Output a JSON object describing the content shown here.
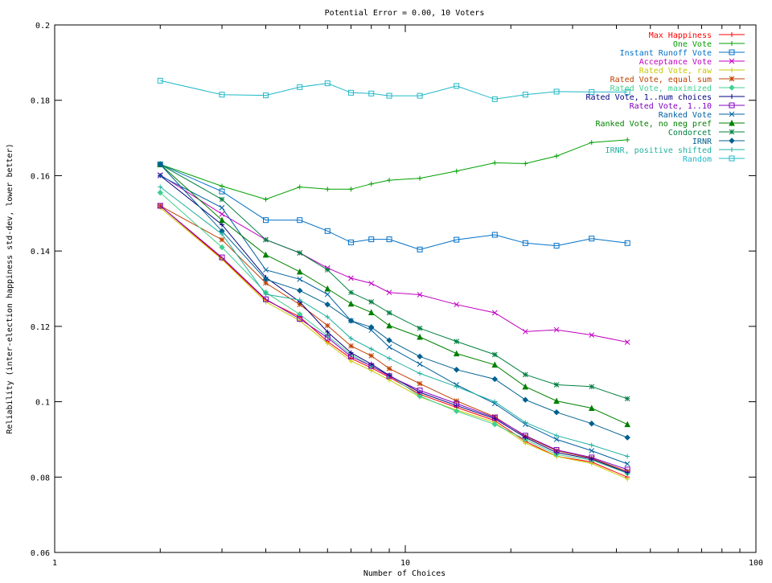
{
  "chart_data": {
    "type": "line",
    "title": "Potential Error = 0.00, 10 Voters",
    "xlabel": "Number of Choices",
    "ylabel": "Reliability (inter-election happiness std-dev, lower better)",
    "x_scale": "log",
    "xlim": [
      1,
      100
    ],
    "ylim": [
      0.06,
      0.2
    ],
    "x_ticks": [
      "1",
      "10",
      "100"
    ],
    "y_ticks": [
      "0.06",
      "0.08",
      "0.1",
      "0.12",
      "0.14",
      "0.16",
      "0.18",
      "0.2"
    ],
    "grid": false,
    "legend_position": "top-right",
    "x": [
      2,
      3,
      4,
      5,
      6,
      7,
      8,
      9,
      11,
      14,
      18,
      22,
      27,
      34,
      43
    ],
    "series": [
      {
        "name": "Max Happiness",
        "color": "#ff0000",
        "marker": "plus",
        "values": [
          0.152,
          0.138,
          0.127,
          0.1225,
          0.116,
          0.1115,
          0.109,
          0.1065,
          0.102,
          0.0985,
          0.095,
          0.0895,
          0.0855,
          0.084,
          0.08
        ]
      },
      {
        "name": "One Vote",
        "color": "#00a000",
        "marker": "plus",
        "values": [
          0.163,
          0.1572,
          0.1537,
          0.157,
          0.1564,
          0.1564,
          0.1578,
          0.1588,
          0.1593,
          0.1612,
          0.1634,
          0.1632,
          0.1652,
          0.1688,
          0.1695
        ]
      },
      {
        "name": "Instant Runoff Vote",
        "color": "#0070c8",
        "marker": "square",
        "values": [
          0.163,
          0.1558,
          0.1482,
          0.1482,
          0.1453,
          0.1423,
          0.1431,
          0.1431,
          0.1404,
          0.143,
          0.1443,
          0.1421,
          0.1414,
          0.1433,
          0.1421
        ]
      },
      {
        "name": "Acceptance Vote",
        "color": "#c000c0",
        "marker": "x",
        "values": [
          0.1602,
          0.1498,
          0.143,
          0.1395,
          0.1355,
          0.1328,
          0.1314,
          0.129,
          0.1284,
          0.1258,
          0.1236,
          0.1186,
          0.1191,
          0.1177,
          0.1158
        ]
      },
      {
        "name": "Rated Vote, raw",
        "color": "#c8c800",
        "marker": "plus",
        "values": [
          0.1515,
          0.1378,
          0.1265,
          0.1215,
          0.1155,
          0.1108,
          0.1083,
          0.1058,
          0.1013,
          0.0978,
          0.0945,
          0.089,
          0.0855,
          0.0836,
          0.0795
        ]
      },
      {
        "name": "Rated Vote, equal sum",
        "color": "#c04000",
        "marker": "star",
        "values": [
          0.152,
          0.143,
          0.1315,
          0.1258,
          0.1202,
          0.1148,
          0.1122,
          0.1088,
          0.1048,
          0.1002,
          0.096,
          0.0908,
          0.087,
          0.085,
          0.0815
        ]
      },
      {
        "name": "Rated Vote, maximized",
        "color": "#40d090",
        "marker": "diamond",
        "values": [
          0.1555,
          0.141,
          0.129,
          0.1232,
          0.1175,
          0.1125,
          0.1095,
          0.107,
          0.1015,
          0.0975,
          0.094,
          0.09,
          0.086,
          0.0845,
          0.081
        ]
      },
      {
        "name": "Rated Vote, 1..num choices",
        "color": "#000080",
        "marker": "plus",
        "values": [
          0.16,
          0.147,
          0.133,
          0.1265,
          0.1185,
          0.113,
          0.11,
          0.107,
          0.1025,
          0.099,
          0.0955,
          0.0905,
          0.0865,
          0.0848,
          0.0812
        ]
      },
      {
        "name": "Rated Vote, 1..10",
        "color": "#8000c0",
        "marker": "square",
        "values": [
          0.152,
          0.1383,
          0.1272,
          0.122,
          0.117,
          0.112,
          0.1095,
          0.1068,
          0.103,
          0.0995,
          0.0958,
          0.091,
          0.0872,
          0.0852,
          0.082
        ]
      },
      {
        "name": "Ranked Vote",
        "color": "#0060a0",
        "marker": "x",
        "values": [
          0.16,
          0.1515,
          0.135,
          0.1325,
          0.1285,
          0.1215,
          0.119,
          0.1145,
          0.11,
          0.1045,
          0.0995,
          0.094,
          0.09,
          0.087,
          0.0835
        ]
      },
      {
        "name": "Ranked Vote, no neg pref",
        "color": "#008000",
        "marker": "triangle",
        "values": [
          0.163,
          0.1482,
          0.139,
          0.1345,
          0.13,
          0.126,
          0.1237,
          0.1202,
          0.1172,
          0.1128,
          0.1098,
          0.104,
          0.1002,
          0.0983,
          0.094
        ]
      },
      {
        "name": "Condorcet",
        "color": "#008040",
        "marker": "star",
        "values": [
          0.163,
          0.1537,
          0.143,
          0.1395,
          0.135,
          0.129,
          0.1265,
          0.1236,
          0.1195,
          0.116,
          0.1125,
          0.1072,
          0.1045,
          0.104,
          0.1008
        ]
      },
      {
        "name": "IRNR",
        "color": "#006090",
        "marker": "diamond",
        "values": [
          0.163,
          0.1453,
          0.1325,
          0.1295,
          0.1258,
          0.1215,
          0.1198,
          0.1163,
          0.112,
          0.1085,
          0.106,
          0.1005,
          0.0972,
          0.0942,
          0.0905
        ]
      },
      {
        "name": "IRNR, positive shifted",
        "color": "#20b0a0",
        "marker": "plus",
        "values": [
          0.157,
          0.1445,
          0.1285,
          0.127,
          0.1225,
          0.1168,
          0.114,
          0.1115,
          0.1075,
          0.104,
          0.1,
          0.0945,
          0.091,
          0.0885,
          0.0855
        ]
      },
      {
        "name": "Random",
        "color": "#20b8c8",
        "marker": "square",
        "values": [
          0.1852,
          0.1815,
          0.1813,
          0.1835,
          0.1845,
          0.182,
          0.1818,
          0.1812,
          0.1812,
          0.1838,
          0.1803,
          0.1815,
          0.1823,
          0.1822,
          0.1822
        ]
      }
    ]
  }
}
